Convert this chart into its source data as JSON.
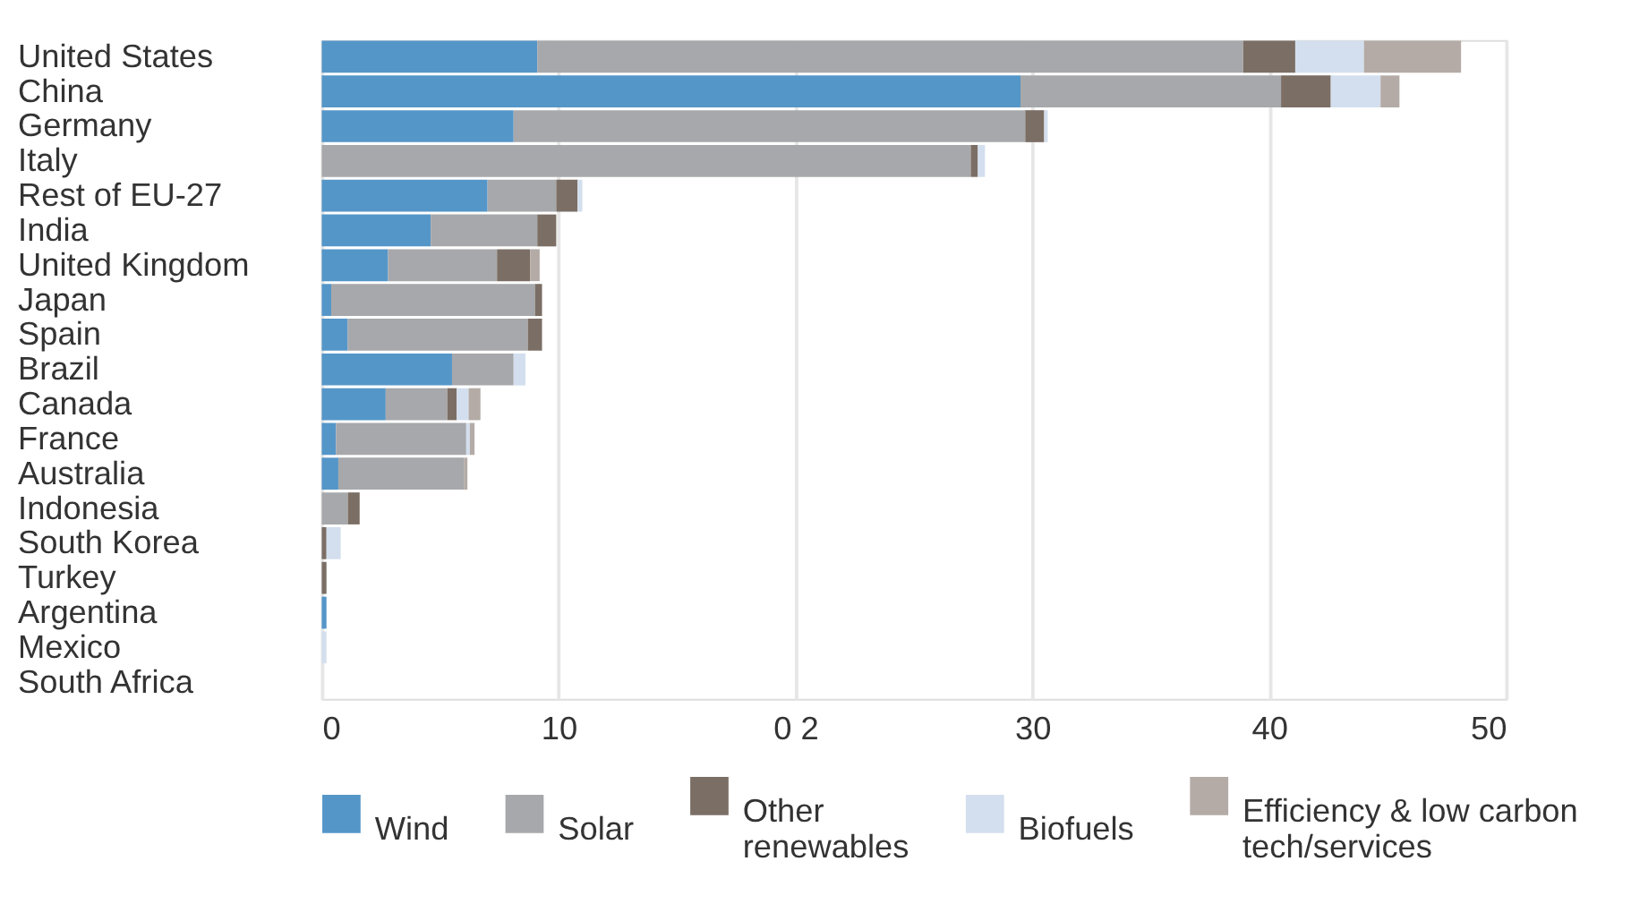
{
  "chart_data": {
    "type": "bar",
    "orientation": "horizontal",
    "stacked": true,
    "categories": [
      "United States",
      "China",
      "Germany",
      "Italy",
      "Rest of EU-27",
      "India",
      "United Kingdom",
      "Japan",
      "Spain",
      "Brazil",
      "Canada",
      "France",
      "Australia",
      "Indonesia",
      "South Korea",
      "Turkey",
      "Argentina",
      "Mexico",
      "South Africa"
    ],
    "series": [
      {
        "name": "Wind",
        "color": "#5596c8",
        "values": [
          9.1,
          29.5,
          8.1,
          null,
          7.0,
          4.6,
          2.8,
          0.4,
          1.1,
          5.5,
          2.7,
          0.6,
          0.7,
          null,
          null,
          null,
          0.2,
          null,
          null
        ]
      },
      {
        "name": "Solar",
        "color": "#a7a8ab",
        "values": [
          29.8,
          11.0,
          21.6,
          27.4,
          2.9,
          4.5,
          4.6,
          8.6,
          7.6,
          2.6,
          2.6,
          5.5,
          5.3,
          1.1,
          null,
          null,
          null,
          null,
          null
        ]
      },
      {
        "name": "Other renewables",
        "color": "#7b6e65",
        "values": [
          2.2,
          2.1,
          0.8,
          0.3,
          0.9,
          0.8,
          1.4,
          0.3,
          0.6,
          null,
          0.4,
          null,
          null,
          0.5,
          0.2,
          0.2,
          null,
          null,
          null
        ]
      },
      {
        "name": "Biofuels",
        "color": "#d3dfee",
        "values": [
          2.9,
          2.1,
          0.15,
          0.3,
          0.2,
          null,
          null,
          null,
          null,
          0.5,
          0.5,
          0.15,
          null,
          null,
          0.6,
          null,
          null,
          0.2,
          null
        ]
      },
      {
        "name": "Efficiency & low carbon tech/services",
        "color": "#b4aba6",
        "values": [
          4.1,
          0.8,
          null,
          null,
          null,
          null,
          0.4,
          null,
          null,
          null,
          0.5,
          0.2,
          0.15,
          null,
          null,
          null,
          null,
          null,
          null
        ]
      }
    ],
    "xlim": [
      0,
      50
    ],
    "xticks": [
      0,
      10,
      {
        "value": 20,
        "label": "0 2"
      },
      30,
      40,
      50
    ],
    "grid": "x",
    "legend": "bottom"
  }
}
